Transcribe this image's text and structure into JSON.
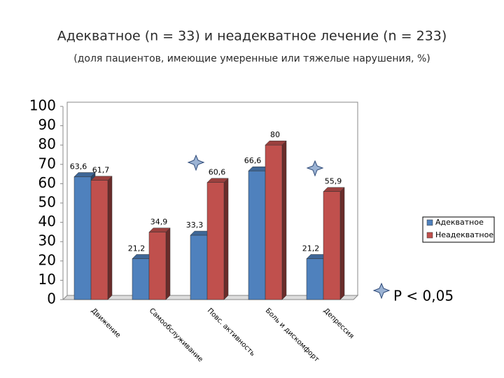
{
  "chart_data": {
    "type": "bar",
    "title": "Адекватное (n = 33) и неадекватное лечение (n = 233)",
    "subtitle": "(доля пациентов, имеющие умеренные или тяжелые нарушения, %)",
    "annotation": "P < 0,05",
    "categories": [
      "Движение",
      "Самообслуживание",
      "Повс. активность",
      "Боль и дискомфорт",
      "Депрессия"
    ],
    "series": [
      {
        "name": "Адекватное",
        "color": "#4f81bd",
        "values": [
          63.6,
          21.2,
          33.3,
          66.6,
          21.2
        ],
        "value_labels": [
          "63,6",
          "21,2",
          "33,3",
          "66,6",
          "21,2"
        ]
      },
      {
        "name": "Неадекватное",
        "color": "#c0504d",
        "values": [
          61.7,
          34.9,
          60.6,
          80,
          55.9
        ],
        "value_labels": [
          "61,7",
          "34,9",
          "60,6",
          "80",
          "55,9"
        ]
      }
    ],
    "ylim": [
      0,
      100
    ],
    "yticks": [
      0,
      10,
      20,
      30,
      40,
      50,
      60,
      70,
      80,
      90,
      100
    ],
    "grid": false
  }
}
